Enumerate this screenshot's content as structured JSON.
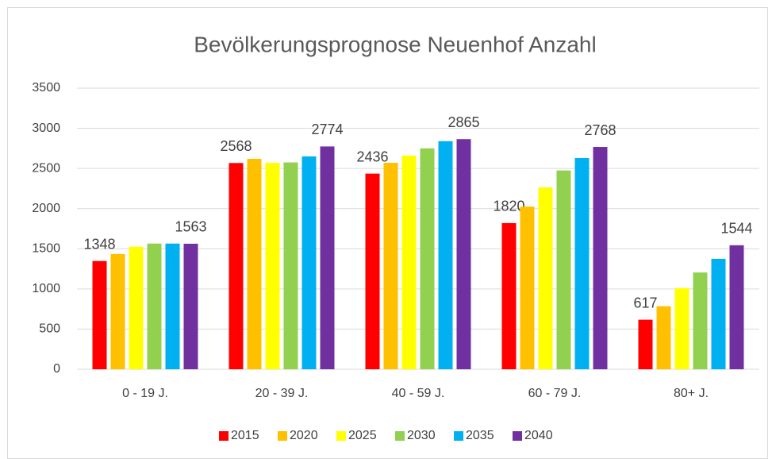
{
  "chart_data": {
    "type": "bar",
    "title": "Bevölkerungsprognose Neuenhof Anzahl",
    "categories": [
      "0 - 19 J.",
      "20 - 39 J.",
      "40 - 59 J.",
      "60 - 79 J.",
      "80+ J."
    ],
    "series": [
      {
        "name": "2015",
        "color": "#ff0000",
        "values": [
          1348,
          2568,
          2436,
          1820,
          617
        ],
        "data_labels": true
      },
      {
        "name": "2020",
        "color": "#ffc000",
        "values": [
          1435,
          2620,
          2570,
          2025,
          785
        ],
        "data_labels": false
      },
      {
        "name": "2025",
        "color": "#ffff00",
        "values": [
          1525,
          2570,
          2660,
          2265,
          1010
        ],
        "data_labels": false
      },
      {
        "name": "2030",
        "color": "#92d050",
        "values": [
          1565,
          2575,
          2750,
          2475,
          1205
        ],
        "data_labels": false
      },
      {
        "name": "2035",
        "color": "#00b0f0",
        "values": [
          1565,
          2650,
          2840,
          2630,
          1375
        ],
        "data_labels": false
      },
      {
        "name": "2040",
        "color": "#7030a0",
        "values": [
          1563,
          2774,
          2865,
          2768,
          1544
        ],
        "data_labels": true
      }
    ],
    "ylim": [
      0,
      3500
    ],
    "yticks": [
      0,
      500,
      1000,
      1500,
      2000,
      2500,
      3000,
      3500
    ],
    "grid": true,
    "legend": "bottom"
  }
}
